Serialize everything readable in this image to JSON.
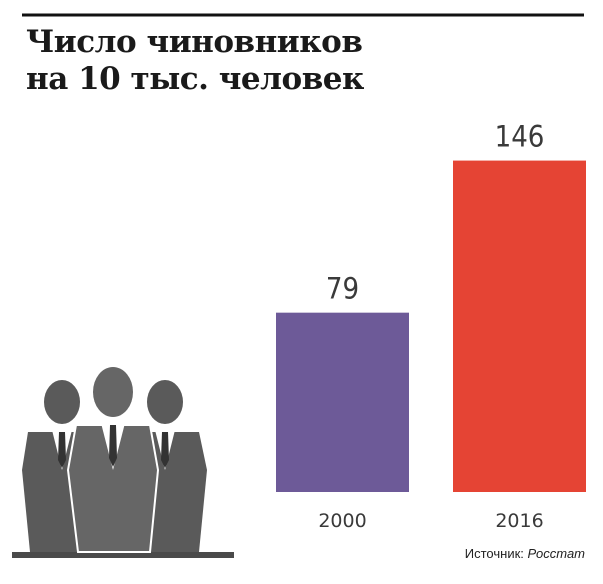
{
  "chart_data": {
    "type": "bar",
    "title": "Число чиновников\nна 10 тыс. человек",
    "categories": [
      "2000",
      "2016"
    ],
    "values": [
      79,
      146
    ],
    "colors": [
      "#6d5a98",
      "#e54434"
    ],
    "source_label": "Источник:",
    "source": "Росстат"
  }
}
